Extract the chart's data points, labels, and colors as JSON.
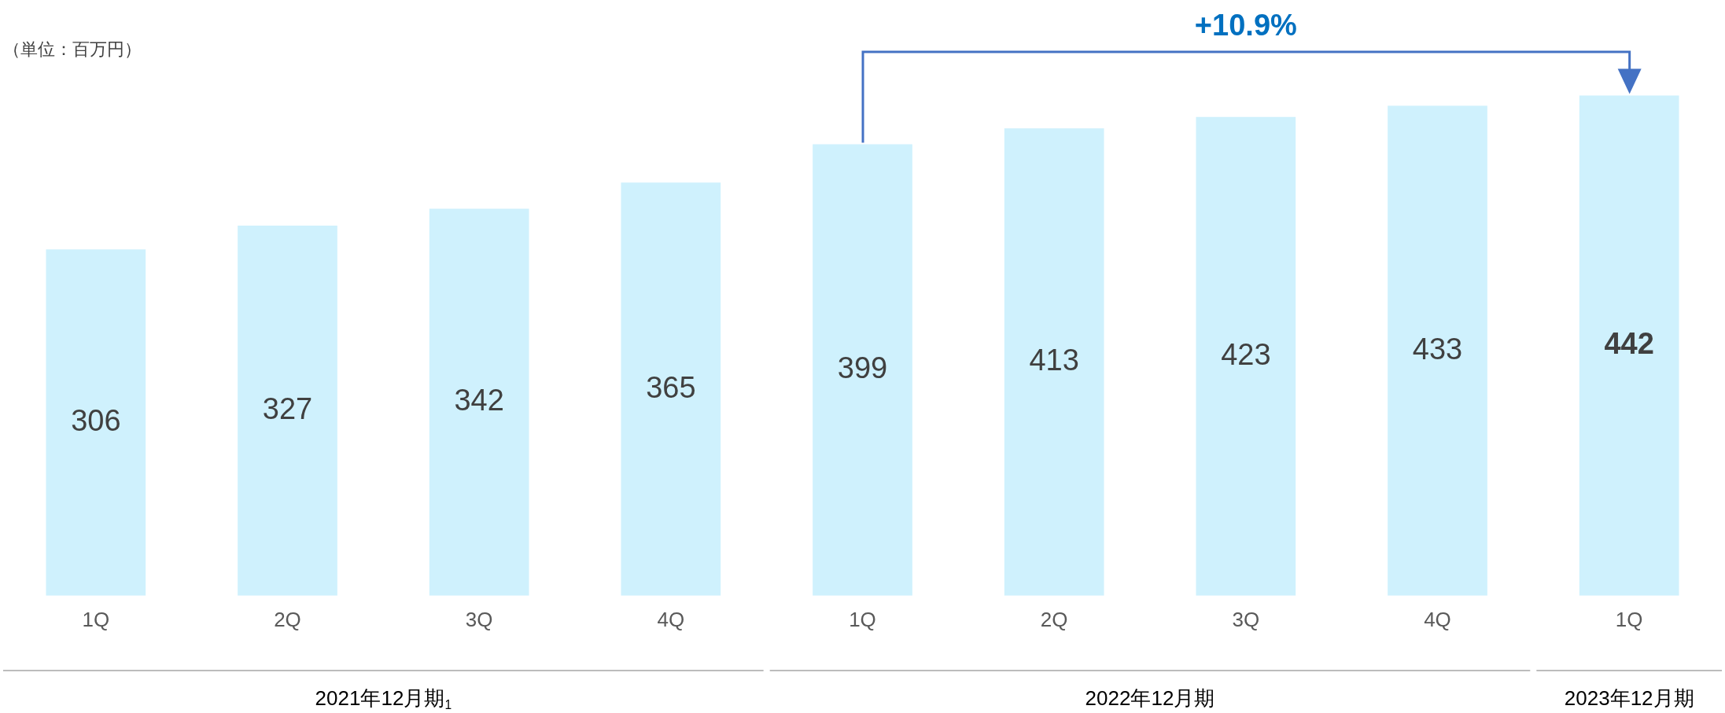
{
  "chart_data": {
    "type": "bar",
    "categories": [
      "1Q",
      "2Q",
      "3Q",
      "4Q",
      "1Q",
      "2Q",
      "3Q",
      "4Q",
      "1Q"
    ],
    "values": [
      306,
      327,
      342,
      365,
      399,
      413,
      423,
      433,
      442
    ],
    "color": "#cff1fd",
    "data_labels": true,
    "tick_labels": "x",
    "grid": false,
    "legend": false,
    "annotations": [
      "（単位：百万円）",
      "+10.9%",
      "2021年12月期$_{1}$",
      "2022年12月期",
      "2023年12月期"
    ]
  }
}
